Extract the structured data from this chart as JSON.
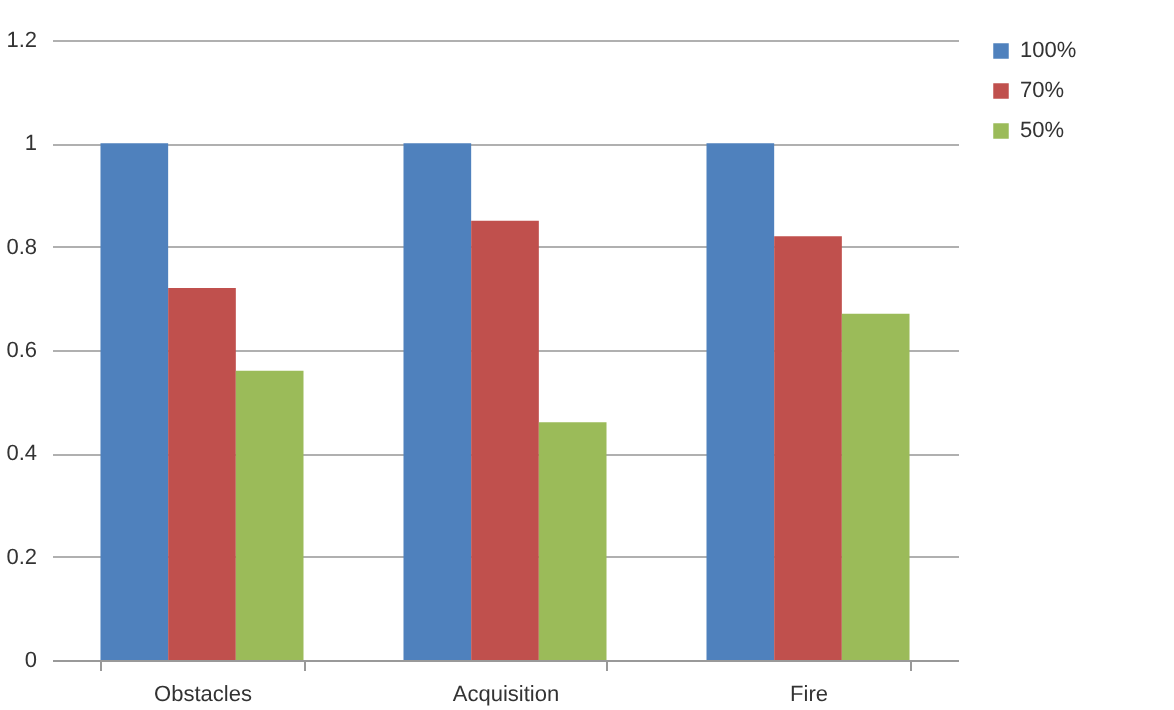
{
  "chart_data": {
    "type": "bar",
    "categories": [
      "Obstacles",
      "Acquisition",
      "Fire"
    ],
    "series": [
      {
        "name": "100%",
        "color": "#4f81bd",
        "values": [
          1,
          1,
          1
        ]
      },
      {
        "name": "70%",
        "color": "#c0504d",
        "values": [
          0.72,
          0.85,
          0.82
        ]
      },
      {
        "name": "50%",
        "color": "#9bbb59",
        "values": [
          0.56,
          0.46,
          0.67
        ]
      }
    ],
    "ylim": [
      0,
      1.2
    ],
    "yticks": [
      0,
      0.2,
      0.4,
      0.6,
      0.8,
      1,
      1.2
    ],
    "grid": "y",
    "legend": "right"
  }
}
